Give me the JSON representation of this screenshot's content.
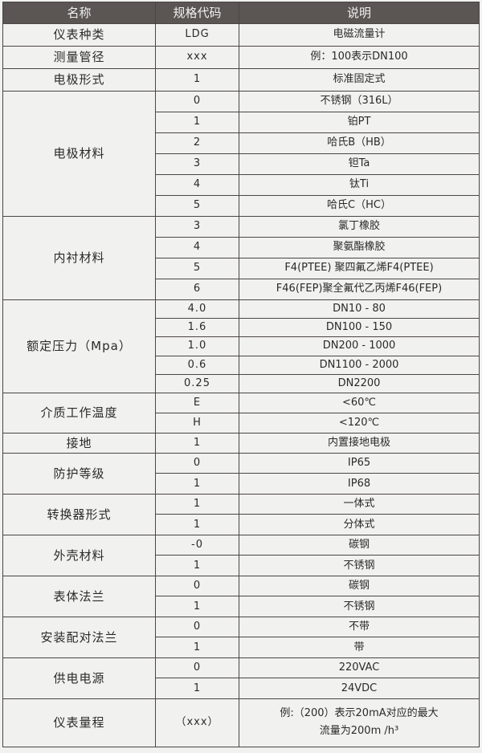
{
  "header": {
    "name": "名称",
    "code": "规格代码",
    "desc": "说明"
  },
  "groups": [
    {
      "name": "仪表种类",
      "rows": [
        {
          "code": "LDG",
          "desc": "电磁流量计"
        }
      ]
    },
    {
      "name": "测量管径",
      "rows": [
        {
          "code": "xxx",
          "desc": "例：100表示DN100"
        }
      ]
    },
    {
      "name": "电极形式",
      "rows": [
        {
          "code": "1",
          "desc": "标准固定式"
        }
      ]
    },
    {
      "name": "电极材料",
      "rows": [
        {
          "code": "0",
          "desc": "不锈钢（316L）"
        },
        {
          "code": "1",
          "desc": "铂PT"
        },
        {
          "code": "2",
          "desc": "哈氏B（HB）"
        },
        {
          "code": "3",
          "desc": "钽Ta"
        },
        {
          "code": "4",
          "desc": "钛Ti"
        },
        {
          "code": "5",
          "desc": "哈氏C（HC）"
        }
      ]
    },
    {
      "name": "内衬材料",
      "rows": [
        {
          "code": "3",
          "desc": "氯丁橡胶"
        },
        {
          "code": "4",
          "desc": "聚氨酯橡胶"
        },
        {
          "code": "5",
          "desc": "F4(PTEE) 聚四氟乙烯F4(PTEE)"
        },
        {
          "code": "6",
          "desc": "F46(FEP)聚全氟代乙丙烯F46(FEP)"
        }
      ]
    },
    {
      "name": "额定压力（Mpa）",
      "rows": [
        {
          "code": "4.0",
          "desc": "DN10 - 80"
        },
        {
          "code": "1.6",
          "desc": "DN100 - 150"
        },
        {
          "code": "1.0",
          "desc": "DN200 - 1000"
        },
        {
          "code": "0.6",
          "desc": "DN1100 - 2000"
        },
        {
          "code": "0.25",
          "desc": "DN2200"
        }
      ]
    },
    {
      "name": "介质工作温度",
      "rows": [
        {
          "code": "E",
          "desc": "<60℃"
        },
        {
          "code": "H",
          "desc": "<120℃"
        }
      ]
    },
    {
      "name": "接地",
      "rows": [
        {
          "code": "1",
          "desc": "内置接地电极"
        }
      ]
    },
    {
      "name": "防护等级",
      "rows": [
        {
          "code": "0",
          "desc": "IP65"
        },
        {
          "code": "1",
          "desc": "IP68"
        }
      ]
    },
    {
      "name": "转换器形式",
      "rows": [
        {
          "code": "1",
          "desc": "一体式"
        },
        {
          "code": "1",
          "desc": "分体式"
        }
      ]
    },
    {
      "name": "外壳材料",
      "rows": [
        {
          "code": "-0",
          "desc": "碳钢"
        },
        {
          "code": "1",
          "desc": "不锈钢"
        }
      ]
    },
    {
      "name": "表体法兰",
      "rows": [
        {
          "code": "0",
          "desc": "碳钢"
        },
        {
          "code": "1",
          "desc": "不锈钢"
        }
      ]
    },
    {
      "name": "安装配对法兰",
      "rows": [
        {
          "code": "0",
          "desc": "不带"
        },
        {
          "code": "1",
          "desc": "带"
        }
      ]
    },
    {
      "name": "供电电源",
      "rows": [
        {
          "code": "0",
          "desc": "220VAC"
        },
        {
          "code": "1",
          "desc": "24VDC"
        }
      ]
    },
    {
      "name": "仪表量程",
      "rows": [
        {
          "code": "（xxx）",
          "desc": "例:（200）表示20mA对应的最大",
          "desc2": "流量为200m /h³"
        }
      ]
    }
  ]
}
